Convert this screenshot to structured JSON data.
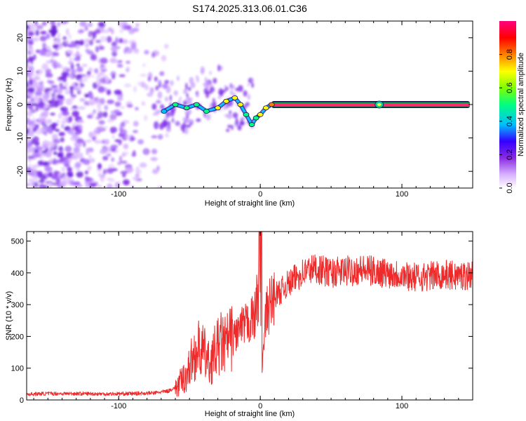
{
  "title": "S174.2025.313.06.01.C36",
  "colors": {
    "snr_line": "#ee2a2a",
    "carrier_core": "#ff2a6a",
    "carrier_edge": "#00a050",
    "scatter": "#7a22ee",
    "axes": "#000000"
  },
  "chart_data": [
    {
      "type": "heatmap",
      "name": "spectrogram",
      "xlabel": "Height of straight line (km)",
      "ylabel": "Frequency (Hz)",
      "xlim": [
        -165,
        150
      ],
      "ylim": [
        -25,
        25
      ],
      "xticks": [
        -100,
        0,
        100
      ],
      "yticks": [
        -20,
        -10,
        0,
        10,
        20
      ],
      "colorbar": {
        "label": "Normalized spectral amplitude",
        "range": [
          0,
          1
        ],
        "ticks": [
          0.0,
          0.2,
          0.4,
          0.6,
          0.8
        ],
        "tick_labels": [
          "0.0",
          "0.2",
          "0.4",
          "0.6",
          "0.8"
        ],
        "colormap": [
          "#ffffff",
          "#d9b3ff",
          "#8a2be2",
          "#3300ff",
          "#00bfff",
          "#00ff80",
          "#80ff00",
          "#ffff00",
          "#ff8000",
          "#ff0000",
          "#ff0080"
        ]
      },
      "carrier": {
        "x": [
          -68,
          -60,
          -52,
          -45,
          -38,
          -30,
          -24,
          -18,
          -14,
          -10,
          -6,
          -3,
          0,
          4,
          8,
          12,
          20,
          40,
          60,
          80,
          84,
          88,
          100,
          120,
          148
        ],
        "freq": [
          -2,
          0,
          -1,
          0,
          -2,
          -1,
          1,
          2,
          0,
          -3,
          -6,
          -4,
          -3,
          -1,
          0,
          0,
          0,
          0,
          0,
          0,
          0,
          0,
          0,
          0,
          0
        ],
        "amplitude": [
          0.3,
          0.35,
          0.4,
          0.35,
          0.4,
          0.5,
          0.6,
          0.65,
          0.5,
          0.45,
          0.4,
          0.45,
          0.5,
          0.6,
          0.8,
          0.9,
          0.95,
          0.98,
          0.98,
          0.98,
          0.6,
          0.98,
          0.98,
          0.98,
          0.98
        ]
      }
    },
    {
      "type": "line",
      "name": "snr",
      "xlabel": "Height of straight line (km)",
      "ylabel": "SNR (10 * v/v)",
      "xlim": [
        -165,
        150
      ],
      "ylim": [
        0,
        530
      ],
      "xticks": [
        -100,
        0,
        100
      ],
      "yticks": [
        0,
        100,
        200,
        300,
        400,
        500
      ],
      "x": [
        -165,
        -150,
        -130,
        -110,
        -90,
        -75,
        -65,
        -58,
        -52,
        -48,
        -44,
        -40,
        -36,
        -32,
        -28,
        -25,
        -22,
        -19,
        -16,
        -13,
        -10,
        -7,
        -4,
        -2,
        0,
        1,
        2,
        4,
        7,
        10,
        14,
        18,
        22,
        26,
        30,
        35,
        40,
        45,
        50,
        60,
        70,
        80,
        90,
        100,
        110,
        120,
        130,
        140,
        150
      ],
      "values": [
        18,
        20,
        20,
        19,
        20,
        22,
        28,
        45,
        80,
        130,
        160,
        150,
        110,
        150,
        180,
        170,
        190,
        200,
        215,
        225,
        235,
        250,
        260,
        330,
        370,
        60,
        140,
        270,
        300,
        330,
        340,
        360,
        370,
        390,
        400,
        410,
        415,
        405,
        400,
        405,
        410,
        405,
        400,
        395,
        385,
        390,
        395,
        390,
        395
      ]
    }
  ]
}
